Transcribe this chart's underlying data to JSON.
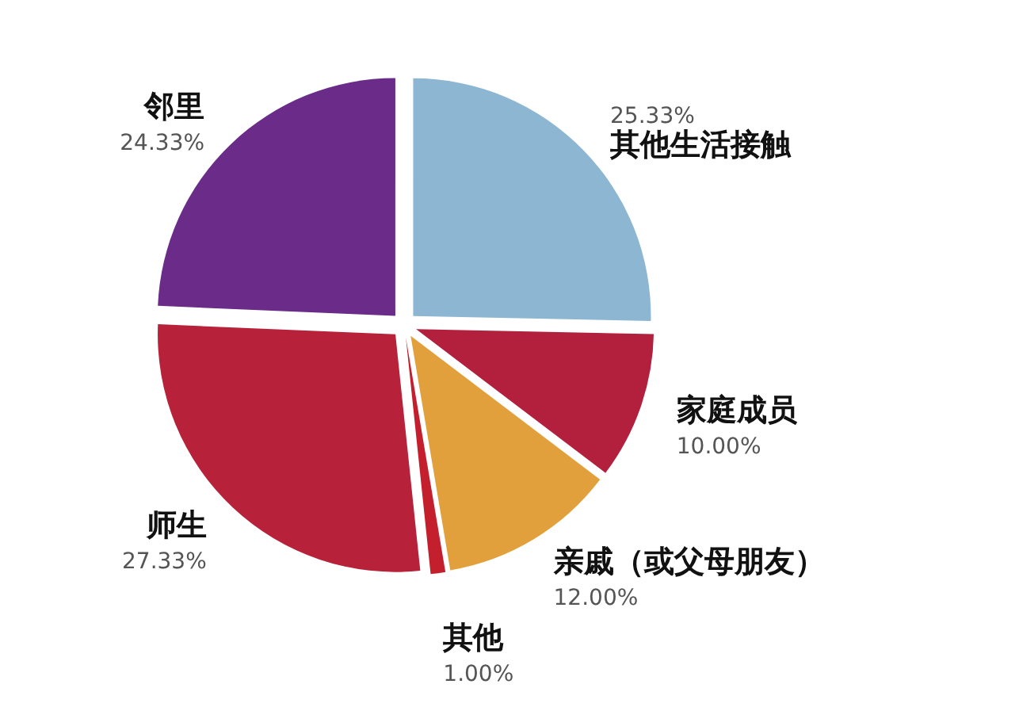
{
  "chart_data": {
    "type": "pie",
    "categories": [
      "其他生活接触",
      "家庭成员",
      "亲戚（或父母朋友）",
      "其他",
      "师生",
      "邻里"
    ],
    "values": [
      25.33,
      10.0,
      12.0,
      1.0,
      27.33,
      24.33
    ],
    "value_labels": [
      "25.33%",
      "10.00%",
      "12.00%",
      "1.00%",
      "27.33%",
      "24.33%"
    ],
    "colors": [
      "#8db6d3",
      "#b3203d",
      "#e2a03c",
      "#c41f2c",
      "#b7223a",
      "#6b2b88"
    ]
  }
}
